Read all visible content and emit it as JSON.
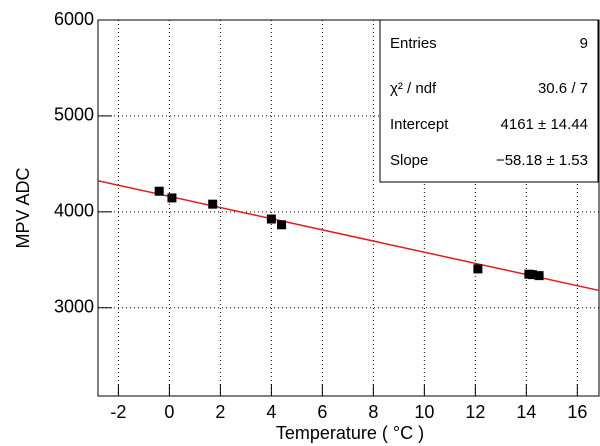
{
  "chart_data": {
    "type": "scatter",
    "x_label": "Temperature ( °C )",
    "y_label": "MPV ADC",
    "x": [
      -0.4,
      0.1,
      1.7,
      4.0,
      4.4,
      12.1,
      14.1,
      14.25,
      14.5
    ],
    "values": [
      4215,
      4145,
      4080,
      3925,
      3865,
      3405,
      3350,
      3345,
      3335
    ],
    "color": "#000000",
    "fit": {
      "intercept": 4161,
      "slope": -58.18,
      "color": "#e31a1c"
    },
    "stats": [
      {
        "label": "Entries",
        "value": "9"
      },
      {
        "label": "χ² / ndf",
        "value": "30.6 / 7"
      },
      {
        "label": "Intercept",
        "value": "4161 ± 14.44"
      },
      {
        "label": "Slope",
        "value": "−58.18 ±  1.53"
      }
    ],
    "xlim": [
      -2.8,
      16.85
    ],
    "ylim": [
      2080,
      6000
    ],
    "xticks": [
      -2,
      0,
      2,
      4,
      6,
      8,
      10,
      12,
      14,
      16
    ],
    "yticks": [
      3000,
      4000,
      5000,
      6000
    ],
    "grid": true
  }
}
